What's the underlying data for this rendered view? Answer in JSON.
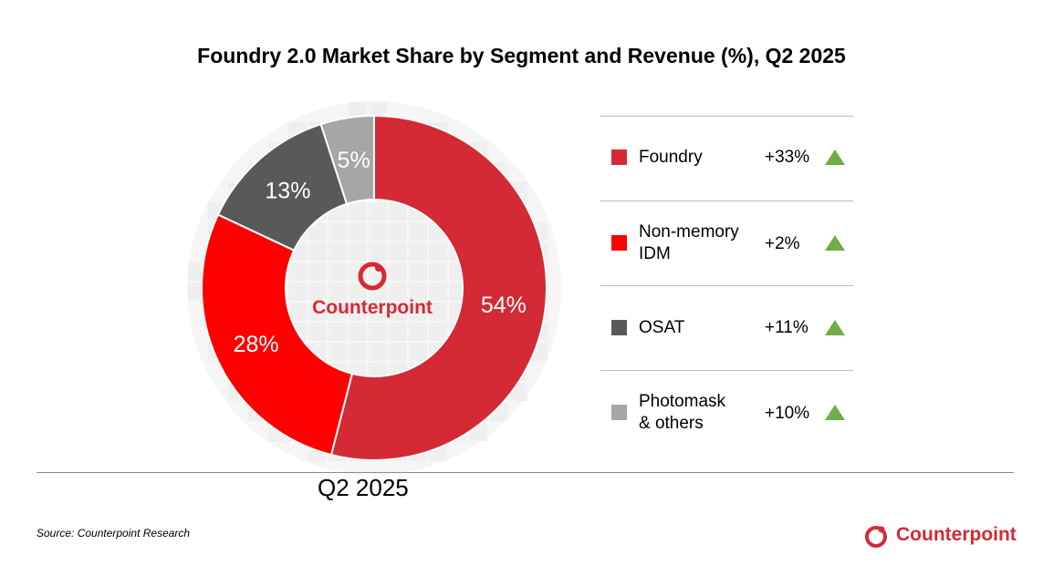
{
  "title": "Foundry 2.0 Market Share by Segment and Revenue (%), Q2 2025",
  "period_label": "Q2 2025",
  "center_logo_text": "Counterpoint",
  "source": "Source: Counterpoint Research",
  "brand": "Counterpoint",
  "colors": {
    "accent": "#d42a35",
    "growth_up": "#70ad47"
  },
  "chart_data": {
    "type": "pie",
    "title": "Foundry 2.0 Market Share by Segment and Revenue (%), Q2 2025",
    "categories": [
      "Foundry",
      "Non-memory IDM",
      "OSAT",
      "Photomask & others"
    ],
    "values": [
      54,
      28,
      13,
      5
    ],
    "value_labels": [
      "54%",
      "28%",
      "13%",
      "5%"
    ],
    "colors": [
      "#d42a35",
      "#ff0000",
      "#595959",
      "#a6a6a6"
    ],
    "donut": true,
    "legend_position": "right"
  },
  "legend": [
    {
      "label": "Foundry",
      "growth": "+33%",
      "color": "#d42a35",
      "trend": "up"
    },
    {
      "label": "Non-memory\nIDM",
      "growth": "+2%",
      "color": "#ff0000",
      "trend": "up"
    },
    {
      "label": "OSAT",
      "growth": "+11%",
      "color": "#595959",
      "trend": "up"
    },
    {
      "label": "Photomask\n& others",
      "growth": "+10%",
      "color": "#a6a6a6",
      "trend": "up"
    }
  ]
}
